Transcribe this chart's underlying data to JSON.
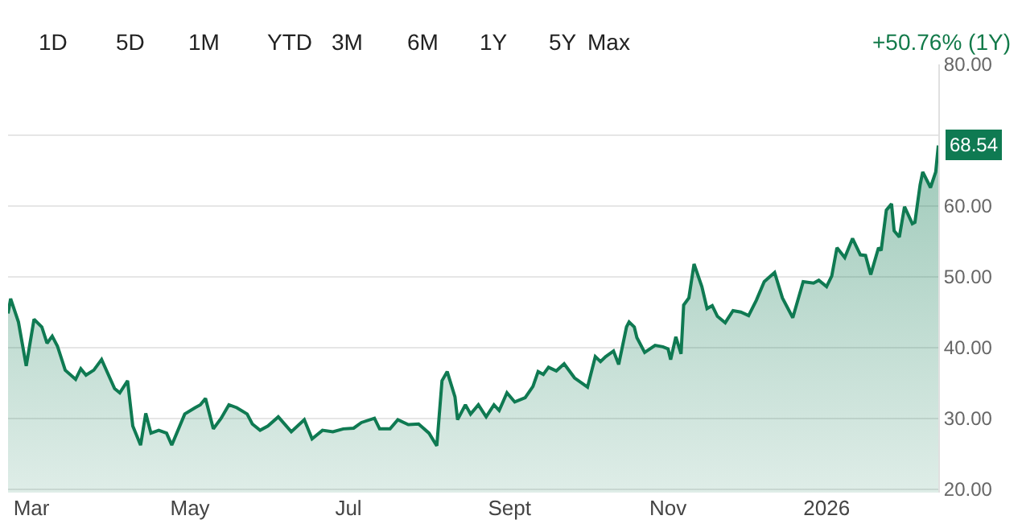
{
  "chart_data": {
    "type": "area",
    "color": "#0f7a52",
    "grid": "y",
    "legend": false,
    "marker": "none",
    "line_style": "solid",
    "x": [
      "2025-02-20",
      "2025-02-21",
      "2025-02-24",
      "2025-02-27",
      "2025-03-02",
      "2025-03-05",
      "2025-03-07",
      "2025-03-09",
      "2025-03-11",
      "2025-03-14",
      "2025-03-18",
      "2025-03-20",
      "2025-03-22",
      "2025-03-25",
      "2025-03-28",
      "2025-04-02",
      "2025-04-04",
      "2025-04-07",
      "2025-04-09",
      "2025-04-12",
      "2025-04-14",
      "2025-04-16",
      "2025-04-19",
      "2025-04-22",
      "2025-04-24",
      "2025-04-29",
      "2025-05-03",
      "2025-05-05",
      "2025-05-07",
      "2025-05-10",
      "2025-05-13",
      "2025-05-16",
      "2025-05-19",
      "2025-05-23",
      "2025-05-25",
      "2025-05-28",
      "2025-05-31",
      "2025-06-04",
      "2025-06-09",
      "2025-06-14",
      "2025-06-17",
      "2025-06-21",
      "2025-06-25",
      "2025-06-29",
      "2025-07-03",
      "2025-07-06",
      "2025-07-11",
      "2025-07-13",
      "2025-07-17",
      "2025-07-20",
      "2025-07-24",
      "2025-07-28",
      "2025-08-01",
      "2025-08-04",
      "2025-08-06",
      "2025-08-08",
      "2025-08-11",
      "2025-08-12",
      "2025-08-15",
      "2025-08-17",
      "2025-08-20",
      "2025-08-23",
      "2025-08-26",
      "2025-08-28",
      "2025-08-31",
      "2025-09-03",
      "2025-09-07",
      "2025-09-10",
      "2025-09-12",
      "2025-09-14",
      "2025-09-16",
      "2025-09-19",
      "2025-09-22",
      "2025-09-26",
      "2025-10-01",
      "2025-10-04",
      "2025-10-06",
      "2025-10-08",
      "2025-10-11",
      "2025-10-13",
      "2025-10-16",
      "2025-10-17",
      "2025-10-19",
      "2025-10-20",
      "2025-10-23",
      "2025-10-27",
      "2025-10-30",
      "2025-11-01",
      "2025-11-02",
      "2025-11-04",
      "2025-11-06",
      "2025-11-07",
      "2025-11-09",
      "2025-11-11",
      "2025-11-14",
      "2025-11-16",
      "2025-11-18",
      "2025-11-20",
      "2025-11-23",
      "2025-11-26",
      "2025-11-29",
      "2025-12-02",
      "2025-12-05",
      "2025-12-08",
      "2025-12-12",
      "2025-12-15",
      "2025-12-19",
      "2025-12-23",
      "2025-12-27",
      "2025-12-29",
      "2026-01-01",
      "2026-01-03",
      "2026-01-05",
      "2026-01-08",
      "2026-01-11",
      "2026-01-14",
      "2026-01-16",
      "2026-01-18",
      "2026-01-21",
      "2026-01-22",
      "2026-01-24",
      "2026-01-26",
      "2026-01-27",
      "2026-01-29",
      "2026-01-31",
      "2026-02-03",
      "2026-02-04",
      "2026-02-06",
      "2026-02-07",
      "2026-02-10",
      "2026-02-12",
      "2026-02-13"
    ],
    "values": [
      44.8,
      46.9,
      43.6,
      37.4,
      44.0,
      42.9,
      40.6,
      41.6,
      40.2,
      36.8,
      35.5,
      37.0,
      36.1,
      36.8,
      38.3,
      34.2,
      33.6,
      35.3,
      28.9,
      26.2,
      30.7,
      27.9,
      28.3,
      27.9,
      26.2,
      30.6,
      31.5,
      31.9,
      32.8,
      28.5,
      30.0,
      31.9,
      31.5,
      30.6,
      29.2,
      28.3,
      28.9,
      30.2,
      28.1,
      29.8,
      27.1,
      28.3,
      28.1,
      28.5,
      28.6,
      29.4,
      30.0,
      28.5,
      28.5,
      29.8,
      29.1,
      29.2,
      27.9,
      26.1,
      35.3,
      36.6,
      33.0,
      29.8,
      31.9,
      30.6,
      31.9,
      30.2,
      31.9,
      31.1,
      33.6,
      32.3,
      32.9,
      34.5,
      36.6,
      36.2,
      37.2,
      36.7,
      37.7,
      35.7,
      34.4,
      38.7,
      38.0,
      38.7,
      39.5,
      37.6,
      42.9,
      43.6,
      42.9,
      41.4,
      39.3,
      40.3,
      40.1,
      39.8,
      38.3,
      41.5,
      39.1,
      46.0,
      47.0,
      51.8,
      48.6,
      45.5,
      45.9,
      44.4,
      43.5,
      45.2,
      45.0,
      44.5,
      46.7,
      49.3,
      50.6,
      47.0,
      44.2,
      49.3,
      49.1,
      49.5,
      48.6,
      50.1,
      54.1,
      52.7,
      55.4,
      53.1,
      53.0,
      50.3,
      54.1,
      53.7,
      59.4,
      60.3,
      56.5,
      55.6,
      59.9,
      57.5,
      57.7,
      63.0,
      64.8,
      62.6,
      64.8,
      68.54
    ],
    "xlim": [
      "2025-02-20",
      "2026-02-13"
    ],
    "xticks": [
      {
        "value": "2025-03-01",
        "label": "Mar"
      },
      {
        "value": "2025-05-01",
        "label": "May"
      },
      {
        "value": "2025-07-01",
        "label": "Jul"
      },
      {
        "value": "2025-09-01",
        "label": "Sept"
      },
      {
        "value": "2025-11-01",
        "label": "Nov"
      },
      {
        "value": "2026-01-01",
        "label": "2026"
      }
    ],
    "ylim": [
      19.5,
      80
    ],
    "yticks": [
      {
        "value": 20,
        "label": "20.00"
      },
      {
        "value": 30,
        "label": "30.00"
      },
      {
        "value": 40,
        "label": "40.00"
      },
      {
        "value": 50,
        "label": "50.00"
      },
      {
        "value": 60,
        "label": "60.00"
      },
      {
        "value": 70,
        "label": null
      },
      {
        "value": 80,
        "label": "80.00"
      }
    ],
    "annotations": [
      "1D",
      "5D",
      "1M",
      "YTD",
      "3M",
      "6M",
      "1Y",
      "5Y",
      "Max",
      "+50.76% (1Y)",
      {
        "text": "68.54",
        "x": "2026-02-13",
        "y": 68.54
      }
    ]
  }
}
